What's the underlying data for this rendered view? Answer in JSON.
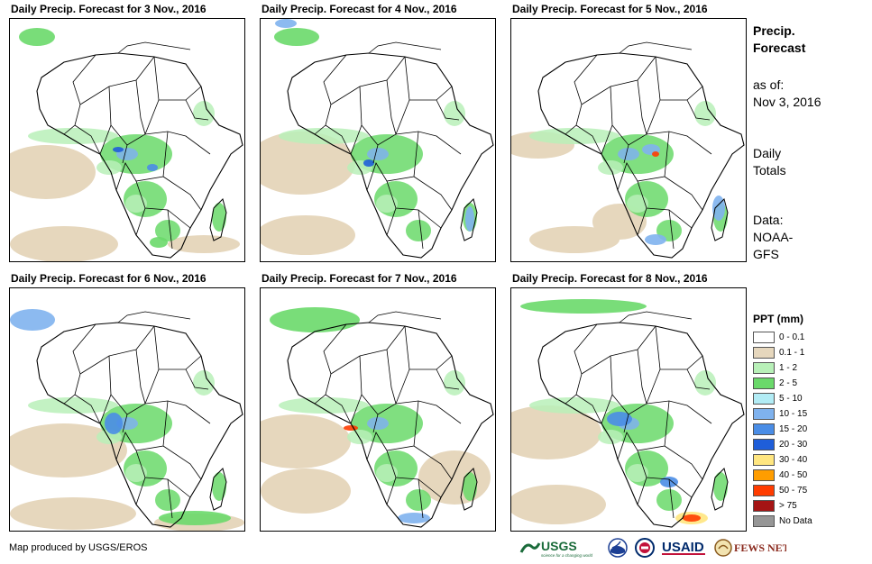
{
  "panels": [
    {
      "title": "Daily Precip. Forecast for 3 Nov., 2016"
    },
    {
      "title": "Daily Precip. Forecast for 4 Nov., 2016"
    },
    {
      "title": "Daily Precip. Forecast for 5 Nov., 2016"
    },
    {
      "title": "Daily Precip. Forecast for 6 Nov., 2016"
    },
    {
      "title": "Daily Precip. Forecast for 7 Nov., 2016"
    },
    {
      "title": "Daily Precip. Forecast for 8 Nov., 2016"
    }
  ],
  "side": {
    "heading_line1": "Precip.",
    "heading_line2": "Forecast",
    "asof_line1": "as of:",
    "asof_line2": "Nov 3, 2016",
    "totals_line1": "Daily",
    "totals_line2": "Totals",
    "data_line1": "Data:",
    "data_line2": "NOAA-",
    "data_line3": "GFS"
  },
  "legend": {
    "title": "PPT (mm)",
    "items": [
      {
        "label": "0 - 0.1",
        "color": "#ffffff"
      },
      {
        "label": "0.1 - 1",
        "color": "#e6d7bd"
      },
      {
        "label": "1 - 2",
        "color": "#b8f0b8"
      },
      {
        "label": "2 - 5",
        "color": "#6ad96a"
      },
      {
        "label": "5 - 10",
        "color": "#b2ecf5"
      },
      {
        "label": "10 - 15",
        "color": "#7fb2ee"
      },
      {
        "label": "15 - 20",
        "color": "#4a8de6"
      },
      {
        "label": "20 - 30",
        "color": "#1f5ed9"
      },
      {
        "label": "30 - 40",
        "color": "#ffe680"
      },
      {
        "label": "40 - 50",
        "color": "#ff9d00"
      },
      {
        "label": "50 - 75",
        "color": "#ff3c00"
      },
      {
        "label": "> 75",
        "color": "#a51414"
      },
      {
        "label": "No Data",
        "color": "#969696"
      }
    ]
  },
  "credit": "Map produced by USGS/EROS",
  "logos": {
    "usgs": "USGS",
    "usgs_tagline": "science for a changing world",
    "usaid": "USAID",
    "fewsnet": "FEWS NET"
  }
}
